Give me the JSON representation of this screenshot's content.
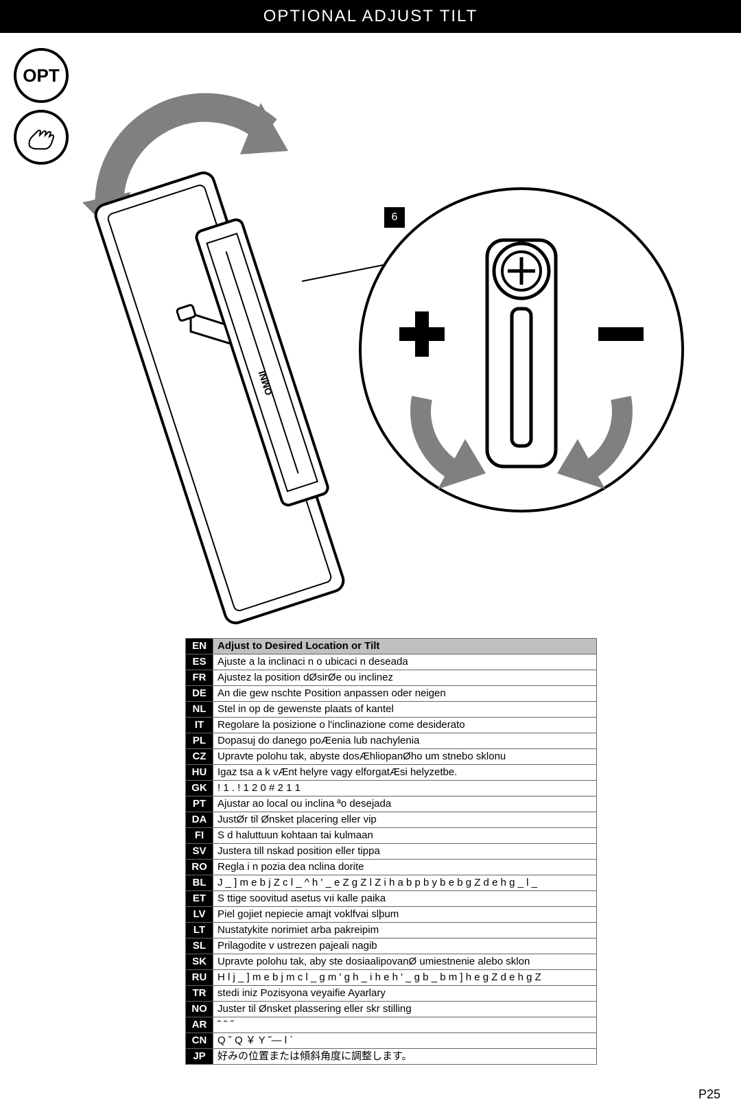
{
  "header": {
    "title": "OPTIONAL   ADJUST TILT"
  },
  "opt_badge": {
    "label": "OPT"
  },
  "callout": {
    "num": "6"
  },
  "page_number": "P25",
  "diagram": {
    "tilt_arrow_color": "#808080",
    "detail_arrow_color": "#808080",
    "line_color": "#000000",
    "plus_label": "+",
    "minus_label": "-",
    "brand_text": "OMNI"
  },
  "translations": [
    {
      "code": "EN",
      "text": "Adjust to Desired Location or Tilt",
      "header": true
    },
    {
      "code": "ES",
      "text": "Ajuste a la inclinaci n o ubicaci n deseada"
    },
    {
      "code": "FR",
      "text": "Ajustez   la position dØsirØe ou inclinez"
    },
    {
      "code": "DE",
      "text": "An die gew nschte Position anpassen oder neigen"
    },
    {
      "code": "NL",
      "text": "Stel in op de gewenste plaats of kantel"
    },
    {
      "code": "IT",
      "text": "Regolare la posizione o l'inclinazione come desiderato"
    },
    {
      "code": "PL",
      "text": "Dopasuj do  danego poÆenia lub nachylenia"
    },
    {
      "code": "CZ",
      "text": "Upravte polohu tak, abyste dosÆhliopanØho um stnebo sklonu"
    },
    {
      "code": "HU",
      "text": "Igaz tsa a k vÆnt helyre vagy elforgatÆsi helyzetbe."
    },
    {
      "code": "GK",
      "text": " !  1 . !       1 2     0     #     2       1         1"
    },
    {
      "code": "PT",
      "text": "Ajustar ao local ou   inclina ªo  desejada"
    },
    {
      "code": "DA",
      "text": "JustØr til Ønsket placering eller vip"
    },
    {
      "code": "FI",
      "text": "S  d  haluttuun kohtaan tai kulmaan"
    },
    {
      "code": "SV",
      "text": "Justera till  nskad position eller tippa"
    },
    {
      "code": "RO",
      "text": "Regla i n pozia dea nclina dorite"
    },
    {
      "code": "BL",
      "text": " J _ ] m e b j Z c l _ ^ h ' _ e Z g Z l Z  i h a b p b y  b e b  g Z d e h g _ l _"
    },
    {
      "code": "ET",
      "text": "S ttige soovitud asetus vıi kalle paika"
    },
    {
      "code": "LV",
      "text": "Piel gojiet nepiecie amajt voklfvai slþum"
    },
    {
      "code": "LT",
      "text": "Nustatykite norimiet  arba pakreipim"
    },
    {
      "code": "SL",
      "text": "Prilagodite v ustrezen pajeali nagib"
    },
    {
      "code": "SK",
      "text": "Upravte polohu tak, aby ste dosiaalipovanØ umiestnenie alebo sklon"
    },
    {
      "code": "RU",
      "text": " H l j _ ] m e b j m c l _  g m ' g h _  i h e h ' _ g b _  b m ] h e  g Z d e h g Z"
    },
    {
      "code": "TR",
      "text": " stedi iniz Pozisyona veyaifie Ayarlary"
    },
    {
      "code": "NO",
      "text": "Juster til Ønsket plassering eller skr stilling"
    },
    {
      "code": "AR",
      "text": "   ˜               ˜                 ˝"
    },
    {
      "code": "CN",
      "text": "Q  ˘ Q ￥  Y   ˜—     l   `"
    },
    {
      "code": "JP",
      "text": "好みの位置または傾斜角度に調整します。"
    }
  ]
}
